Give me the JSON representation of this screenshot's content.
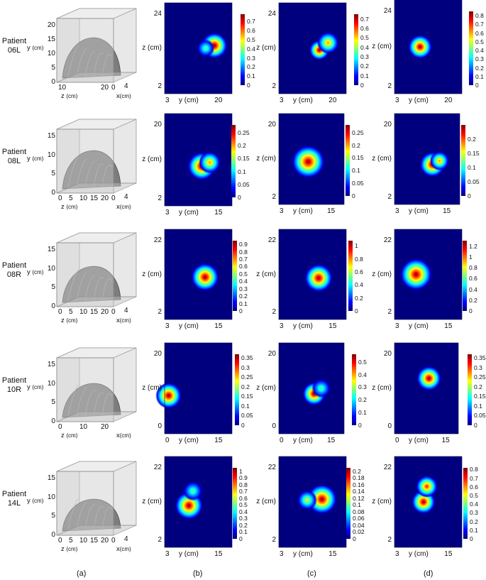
{
  "columns": [
    "(a)",
    "(b)",
    "(c)",
    "(d)"
  ],
  "colorscale": [
    "#00007f",
    "#0000ff",
    "#007fff",
    "#00ffff",
    "#7fff7f",
    "#ffff00",
    "#ff7f00",
    "#ff0000",
    "#7f0000"
  ],
  "rows": [
    {
      "patient": [
        "Patient",
        "06L"
      ],
      "geometry": {
        "y_label": "y",
        "y_unit": "(cm)",
        "y_ticks": [
          "20",
          "15",
          "10",
          "5",
          "0"
        ],
        "z_label": "z",
        "z_unit": "(cm)",
        "z_ticks": [
          "10",
          "20"
        ],
        "x_label": "x",
        "x_unit": "(cm)",
        "x_ticks": [
          "0",
          "4"
        ]
      },
      "maps": [
        {
          "z_top": "24",
          "z_bottom": "2",
          "y_left": "3",
          "y_right": "20",
          "z_axis": "z (cm)",
          "y_axis": "y (cm)",
          "cbar": [
            "0.7",
            "0.6",
            "0.5",
            "0.4",
            "0.3",
            "0.2",
            "0.1",
            "0"
          ],
          "max": 0.78,
          "spots": [
            {
              "cx": 0.74,
              "cy": 0.47,
              "r": 0.13,
              "i": 1.0
            },
            {
              "cx": 0.61,
              "cy": 0.5,
              "r": 0.09,
              "i": 0.55
            }
          ]
        },
        {
          "z_top": "24",
          "z_bottom": "2",
          "y_left": "3",
          "y_right": "20",
          "z_axis": "z (cm)",
          "y_axis": "y (cm)",
          "cbar": [
            "0.7",
            "0.6",
            "0.5",
            "0.4",
            "0.3",
            "0.2",
            "0.1",
            "0"
          ],
          "max": 0.75,
          "spots": [
            {
              "cx": 0.6,
              "cy": 0.52,
              "r": 0.1,
              "i": 0.95
            },
            {
              "cx": 0.73,
              "cy": 0.44,
              "r": 0.11,
              "i": 0.8
            }
          ]
        },
        {
          "z_top": "24",
          "z_bottom": "2",
          "y_left": "3",
          "y_right": "20",
          "z_axis": "z (cm)",
          "y_axis": "y (cm)",
          "cbar": [
            "0.8",
            "0.7",
            "0.6",
            "0.5",
            "0.4",
            "0.3",
            "0.2",
            "0.1",
            "0"
          ],
          "max": 0.85,
          "spots": [
            {
              "cx": 0.38,
              "cy": 0.5,
              "r": 0.12,
              "i": 1.0
            }
          ]
        }
      ]
    },
    {
      "patient": [
        "Patient",
        "08L"
      ],
      "geometry": {
        "y_label": "y",
        "y_unit": "(cm)",
        "y_ticks": [
          "15",
          "10",
          "5",
          "0"
        ],
        "z_label": "z",
        "z_unit": "(cm)",
        "z_ticks": [
          "0",
          "5",
          "10",
          "15",
          "20"
        ],
        "x_label": "x",
        "x_unit": "(cm)",
        "x_ticks": [
          "0",
          "4"
        ]
      },
      "maps": [
        {
          "z_top": "20",
          "z_bottom": "2",
          "y_left": "3",
          "y_right": "15",
          "z_axis": "z (cm)",
          "y_axis": "y (cm)",
          "cbar": [
            "0.25",
            "0.2",
            "0.15",
            "0.1",
            "0.05",
            "0"
          ],
          "max": 0.28,
          "spots": [
            {
              "cx": 0.55,
              "cy": 0.57,
              "r": 0.14,
              "i": 1.0
            },
            {
              "cx": 0.67,
              "cy": 0.53,
              "r": 0.11,
              "i": 0.7
            }
          ]
        },
        {
          "z_top": "20",
          "z_bottom": "2",
          "y_left": "3",
          "y_right": "15",
          "z_axis": "z (cm)",
          "y_axis": "y (cm)",
          "cbar": [
            "0.25",
            "0.2",
            "0.15",
            "0.1",
            "0.05",
            "0"
          ],
          "max": 0.28,
          "spots": [
            {
              "cx": 0.45,
              "cy": 0.53,
              "r": 0.17,
              "i": 1.0
            }
          ]
        },
        {
          "z_top": "20",
          "z_bottom": "2",
          "y_left": "3",
          "y_right": "15",
          "z_axis": "z (cm)",
          "y_axis": "y (cm)",
          "cbar": [
            "0.2",
            "0.15",
            "0.1",
            "0.05",
            "0"
          ],
          "max": 0.25,
          "spots": [
            {
              "cx": 0.58,
              "cy": 0.56,
              "r": 0.13,
              "i": 1.0
            },
            {
              "cx": 0.69,
              "cy": 0.52,
              "r": 0.1,
              "i": 0.75
            }
          ]
        }
      ]
    },
    {
      "patient": [
        "Patient",
        "08R"
      ],
      "geometry": {
        "y_label": "y",
        "y_unit": "(cm)",
        "y_ticks": [
          "15",
          "10",
          "5",
          "0"
        ],
        "z_label": "z",
        "z_unit": "(cm)",
        "z_ticks": [
          "0",
          "5",
          "10",
          "15",
          "20"
        ],
        "x_label": "x",
        "x_unit": "(cm)",
        "x_ticks": [
          "0",
          "4"
        ]
      },
      "maps": [
        {
          "z_top": "22",
          "z_bottom": "2",
          "y_left": "3",
          "y_right": "15",
          "z_axis": "z (cm)",
          "y_axis": "y (cm)",
          "cbar": [
            "0.9",
            "0.8",
            "0.7",
            "0.6",
            "0.5",
            "0.4",
            "0.3",
            "0.2",
            "0.1",
            "0"
          ],
          "max": 0.95,
          "spots": [
            {
              "cx": 0.6,
              "cy": 0.53,
              "r": 0.14,
              "i": 1.0
            }
          ]
        },
        {
          "z_top": "22",
          "z_bottom": "2",
          "y_left": "3",
          "y_right": "15",
          "z_axis": "z (cm)",
          "y_axis": "y (cm)",
          "cbar": [
            "1",
            "0.8",
            "0.6",
            "0.4",
            "0.2",
            "0"
          ],
          "max": 1.08,
          "spots": [
            {
              "cx": 0.59,
              "cy": 0.54,
              "r": 0.14,
              "i": 1.0
            }
          ]
        },
        {
          "z_top": "22",
          "z_bottom": "2",
          "y_left": "3",
          "y_right": "15",
          "z_axis": "z (cm)",
          "y_axis": "y (cm)",
          "cbar": [
            "1.2",
            "1",
            "0.8",
            "0.6",
            "0.4",
            "0.2",
            "0"
          ],
          "max": 1.3,
          "spots": [
            {
              "cx": 0.32,
              "cy": 0.5,
              "r": 0.16,
              "i": 1.0
            }
          ]
        }
      ]
    },
    {
      "patient": [
        "Patient",
        "10R"
      ],
      "geometry": {
        "y_label": "y",
        "y_unit": "(cm)",
        "y_ticks": [
          "15",
          "10",
          "5",
          "0"
        ],
        "z_label": "z",
        "z_unit": "(cm)",
        "z_ticks": [
          "0",
          "10",
          "20"
        ],
        "x_label": "x",
        "x_unit": "(cm)",
        "x_ticks": []
      },
      "maps": [
        {
          "z_top": "20",
          "z_bottom": "0",
          "y_left": "0",
          "y_right": "15",
          "z_axis": "z (cm)",
          "y_axis": "y (cm)",
          "cbar": [
            "0.35",
            "0.3",
            "0.25",
            "0.2",
            "0.15",
            "0.1",
            "0.05",
            "0"
          ],
          "max": 0.37,
          "spots": [
            {
              "cx": 0.06,
              "cy": 0.58,
              "r": 0.13,
              "i": 1.0
            }
          ]
        },
        {
          "z_top": "20",
          "z_bottom": "0",
          "y_left": "0",
          "y_right": "15",
          "z_axis": "z (cm)",
          "y_axis": "y (cm)",
          "cbar": [
            "0.5",
            "0.4",
            "0.3",
            "0.2",
            "0.1",
            "0"
          ],
          "max": 0.56,
          "spots": [
            {
              "cx": 0.54,
              "cy": 0.56,
              "r": 0.12,
              "i": 1.0
            },
            {
              "cx": 0.65,
              "cy": 0.5,
              "r": 0.1,
              "i": 0.55
            }
          ]
        },
        {
          "z_top": "20",
          "z_bottom": "0",
          "y_left": "0",
          "y_right": "15",
          "z_axis": "z (cm)",
          "y_axis": "y (cm)",
          "cbar": [
            "0.35",
            "0.3",
            "0.25",
            "0.2",
            "0.15",
            "0.1",
            "0.05",
            "0"
          ],
          "max": 0.37,
          "spots": [
            {
              "cx": 0.54,
              "cy": 0.39,
              "r": 0.13,
              "i": 1.0
            }
          ]
        }
      ]
    },
    {
      "patient": [
        "Patient",
        "14L"
      ],
      "geometry": {
        "y_label": "y",
        "y_unit": "(cm)",
        "y_ticks": [
          "15",
          "10",
          "5",
          "0"
        ],
        "z_label": "z",
        "z_unit": "(cm)",
        "z_ticks": [
          "0",
          "5",
          "10",
          "15",
          "20"
        ],
        "x_label": "x",
        "x_unit": "(cm)",
        "x_ticks": [
          "0",
          "4"
        ]
      },
      "maps": [
        {
          "z_top": "22",
          "z_bottom": "2",
          "y_left": "3",
          "y_right": "15",
          "z_axis": "z (cm)",
          "y_axis": "y (cm)",
          "cbar": [
            "1",
            "0.9",
            "0.8",
            "0.7",
            "0.6",
            "0.5",
            "0.4",
            "0.3",
            "0.2",
            "0.1",
            "0"
          ],
          "max": 1.05,
          "spots": [
            {
              "cx": 0.36,
              "cy": 0.54,
              "r": 0.14,
              "i": 1.0
            },
            {
              "cx": 0.42,
              "cy": 0.38,
              "r": 0.1,
              "i": 0.45
            }
          ]
        },
        {
          "z_top": "22",
          "z_bottom": "2",
          "y_left": "3",
          "y_right": "15",
          "z_axis": "z (cm)",
          "y_axis": "y (cm)",
          "cbar": [
            "0.2",
            "0.18",
            "0.16",
            "0.14",
            "0.12",
            "0.1",
            "0.08",
            "0.06",
            "0.04",
            "0.02",
            "0"
          ],
          "max": 0.21,
          "spots": [
            {
              "cx": 0.64,
              "cy": 0.47,
              "r": 0.15,
              "i": 1.0
            },
            {
              "cx": 0.42,
              "cy": 0.48,
              "r": 0.1,
              "i": 0.6
            }
          ]
        },
        {
          "z_top": "22",
          "z_bottom": "2",
          "y_left": "3",
          "y_right": "15",
          "z_axis": "z (cm)",
          "y_axis": "y (cm)",
          "cbar": [
            "0.8",
            "0.7",
            "0.6",
            "0.5",
            "0.4",
            "0.3",
            "0.2",
            "0.1",
            "0"
          ],
          "max": 0.82,
          "spots": [
            {
              "cx": 0.43,
              "cy": 0.5,
              "r": 0.12,
              "i": 1.0
            },
            {
              "cx": 0.48,
              "cy": 0.33,
              "r": 0.11,
              "i": 0.9
            }
          ]
        }
      ]
    }
  ]
}
